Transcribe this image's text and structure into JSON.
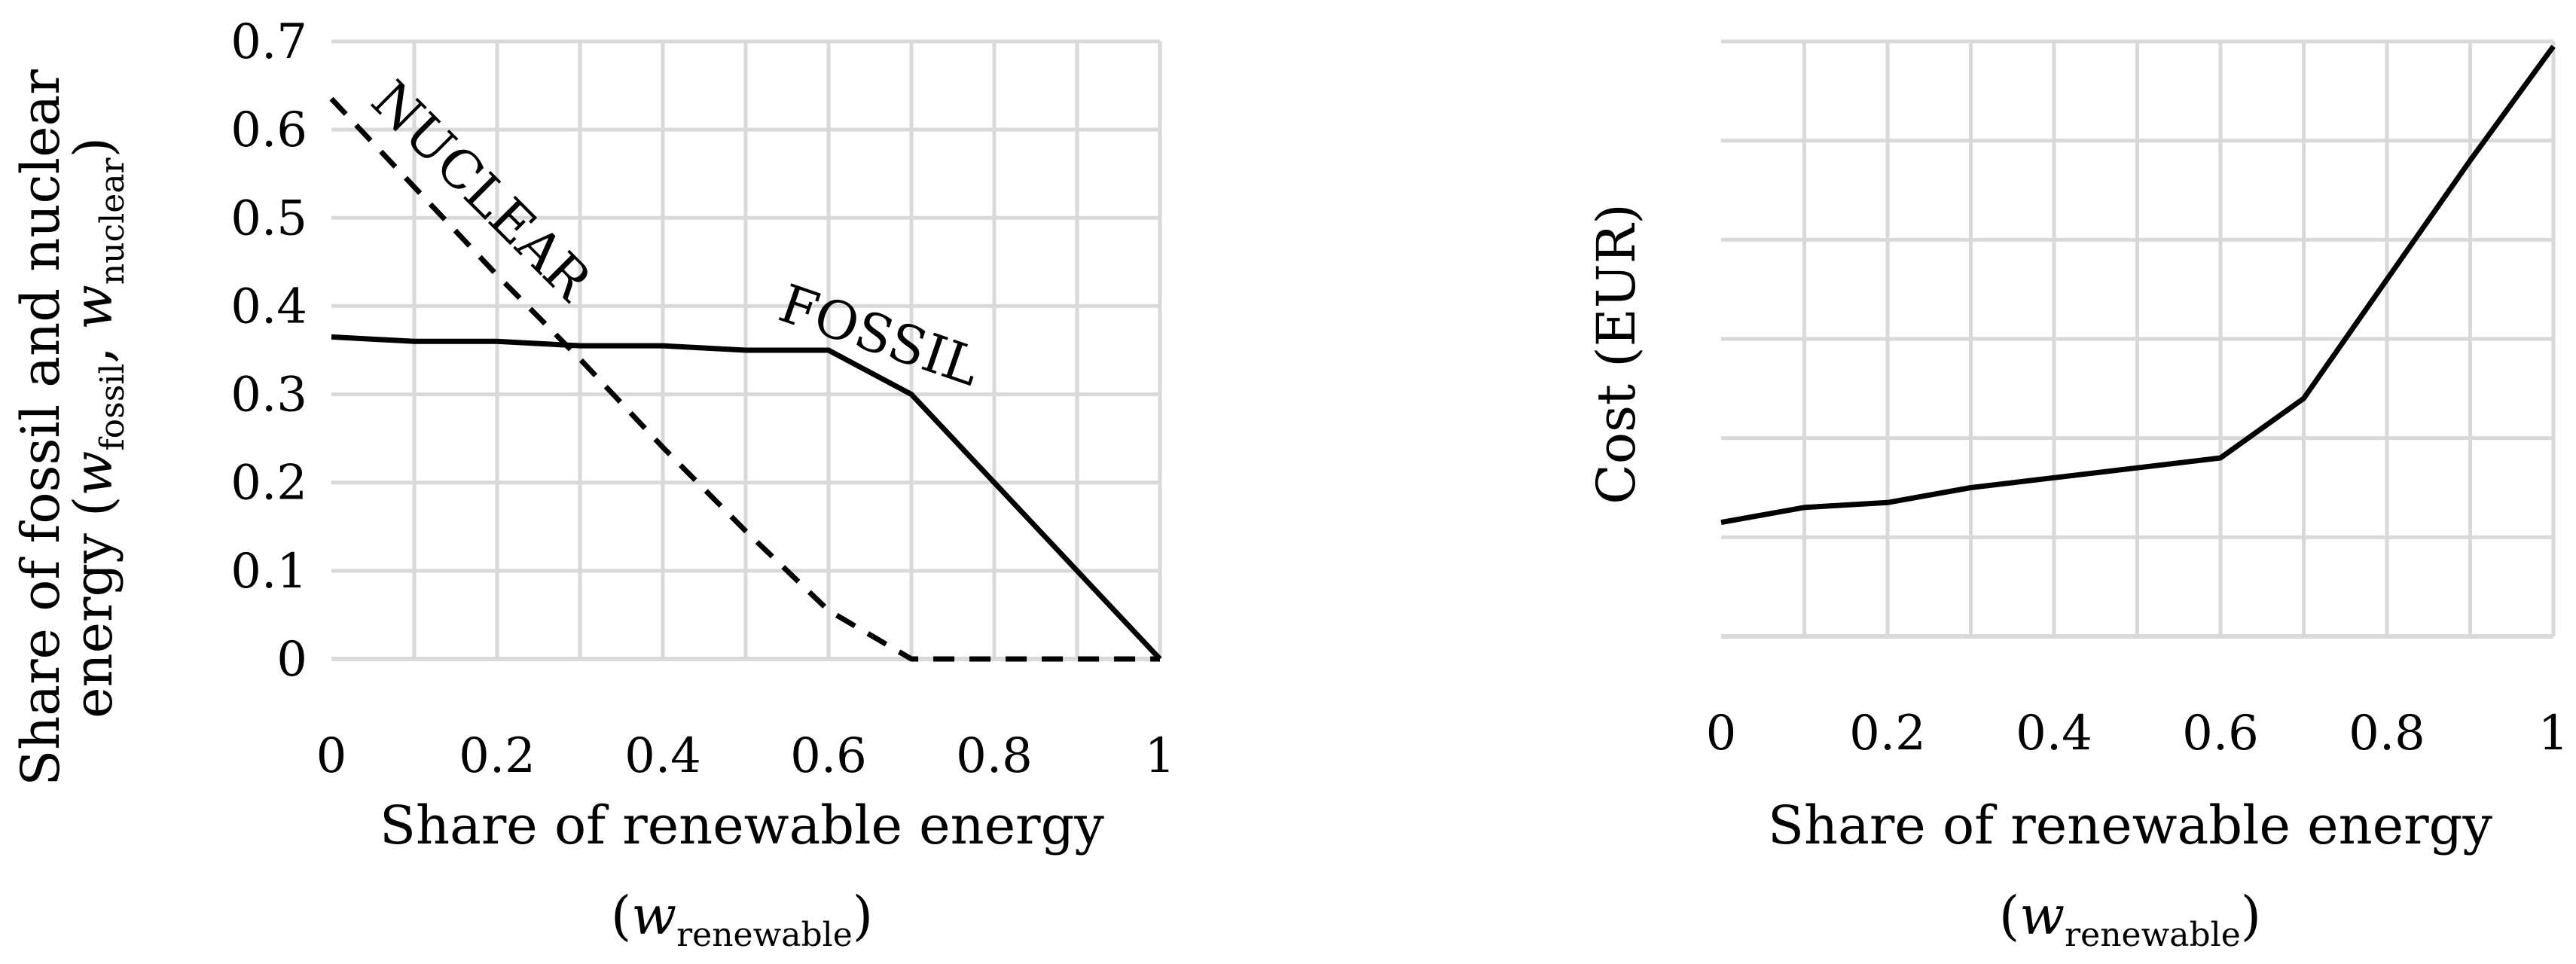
{
  "chart_data": [
    {
      "type": "line",
      "title": "",
      "xlabel": "Share of renewable energy",
      "xlabel_math": {
        "prefix": "(",
        "var": "w",
        "sub": "renewable",
        "suffix": ")"
      },
      "ylabel_line1": "Share of fossil and nuclear",
      "ylabel_line2": {
        "text": "energy (",
        "var1": "w",
        "sub1": "fossil",
        "sep": ", ",
        "var2": "w",
        "sub2": "nuclear",
        "suffix": ")"
      },
      "xlim": [
        0,
        1
      ],
      "ylim": [
        0,
        0.7
      ],
      "x_ticks": [
        0,
        0.2,
        0.4,
        0.6,
        0.8,
        1
      ],
      "x_tick_labels": [
        "0",
        "0.2",
        "0.4",
        "0.6",
        "0.8",
        "1"
      ],
      "y_ticks": [
        0,
        0.1,
        0.2,
        0.3,
        0.4,
        0.5,
        0.6,
        0.7
      ],
      "y_tick_labels": [
        "0",
        "0.1",
        "0.2",
        "0.3",
        "0.4",
        "0.5",
        "0.6",
        "0.7"
      ],
      "grid": true,
      "series": [
        {
          "name": "FOSSIL",
          "style": "solid",
          "x": [
            0,
            0.1,
            0.2,
            0.3,
            0.4,
            0.5,
            0.6,
            0.7,
            0.8,
            0.9,
            1
          ],
          "values": [
            0.365,
            0.36,
            0.36,
            0.355,
            0.355,
            0.35,
            0.35,
            0.3,
            0.2,
            0.1,
            0
          ]
        },
        {
          "name": "NUCLEAR",
          "style": "dashed",
          "x": [
            0,
            0.1,
            0.2,
            0.3,
            0.4,
            0.5,
            0.6,
            0.7,
            0.8,
            0.9,
            1
          ],
          "values": [
            0.635,
            0.535,
            0.435,
            0.34,
            0.24,
            0.145,
            0.055,
            0,
            0,
            0,
            0
          ]
        }
      ],
      "annotations": [
        {
          "text": "NUCLEAR",
          "x": 0.22,
          "y": 0.56,
          "rotation_deg": 45
        },
        {
          "text": "FOSSIL",
          "x": 0.76,
          "y": 0.38,
          "rotation_deg": 19
        }
      ]
    },
    {
      "type": "line",
      "title": "",
      "xlabel": "Share of renewable energy",
      "xlabel_math": {
        "prefix": "(",
        "var": "w",
        "sub": "renewable",
        "suffix": ")"
      },
      "ylabel": "Cost (EUR)",
      "xlim": [
        0,
        1
      ],
      "ylim": [
        0,
        6
      ],
      "x_ticks": [
        0,
        0.2,
        0.4,
        0.6,
        0.8,
        1
      ],
      "x_tick_labels": [
        "0",
        "0.2",
        "0.4",
        "0.6",
        "0.8",
        "1"
      ],
      "y_ticks": [
        0,
        1,
        2,
        3,
        4,
        5,
        6
      ],
      "y_tick_labels": [],
      "grid": true,
      "series": [
        {
          "name": "Cost",
          "style": "solid",
          "x": [
            0,
            0.1,
            0.2,
            0.3,
            0.4,
            0.5,
            0.6,
            0.7,
            0.8,
            0.9,
            1
          ],
          "values": [
            1.15,
            1.3,
            1.35,
            1.5,
            1.6,
            1.7,
            1.8,
            2.4,
            3.6,
            4.8,
            5.95
          ]
        }
      ]
    }
  ]
}
